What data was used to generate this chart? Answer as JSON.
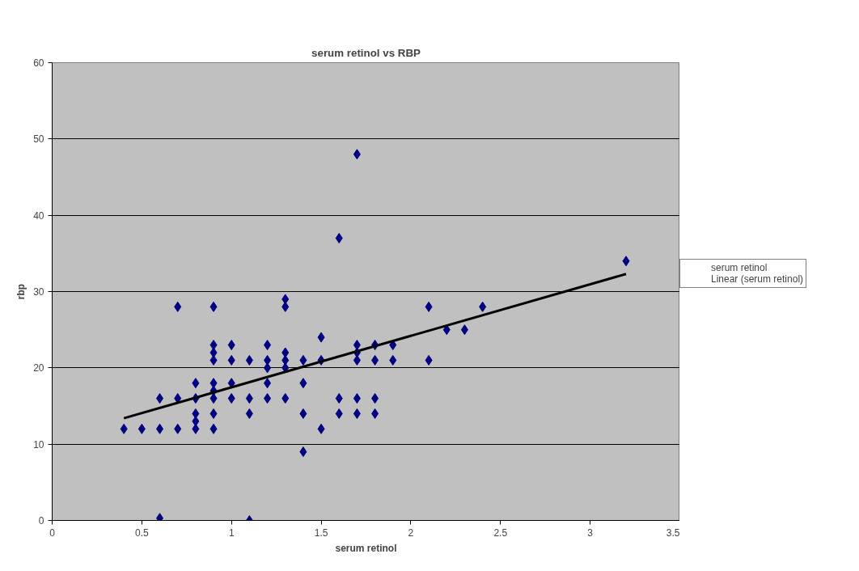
{
  "chart_data": {
    "type": "scatter",
    "title": "serum retinol vs RBP",
    "xlabel": "serum retinol",
    "ylabel": "rbp",
    "xlim": [
      0,
      3.5
    ],
    "xticks": [
      0,
      0.5,
      1,
      1.5,
      2,
      2.5,
      3,
      3.5
    ],
    "ylim": [
      0,
      60
    ],
    "yticks": [
      0,
      10,
      20,
      30,
      40,
      50,
      60
    ],
    "grid": "y",
    "legend": "right",
    "series": [
      {
        "name": "serum retinol",
        "marker": "diamond",
        "color": "#000080",
        "x": [
          0.4,
          0.5,
          0.6,
          0.6,
          0.6,
          0.7,
          0.7,
          0.7,
          0.8,
          0.8,
          0.8,
          0.8,
          0.8,
          0.9,
          0.9,
          0.9,
          0.9,
          0.9,
          0.9,
          0.9,
          0.9,
          0.9,
          1.0,
          1.0,
          1.0,
          1.0,
          1.1,
          1.1,
          1.1,
          1.1,
          1.2,
          1.2,
          1.2,
          1.2,
          1.2,
          1.3,
          1.3,
          1.3,
          1.3,
          1.3,
          1.3,
          1.4,
          1.4,
          1.4,
          1.4,
          1.5,
          1.5,
          1.5,
          1.6,
          1.6,
          1.6,
          1.7,
          1.7,
          1.7,
          1.7,
          1.7,
          1.7,
          1.8,
          1.8,
          1.8,
          1.8,
          1.9,
          1.9,
          2.1,
          2.1,
          2.2,
          2.3,
          2.4,
          3.2
        ],
        "values": [
          12,
          12,
          16,
          12,
          0.3,
          28,
          16,
          12,
          18,
          16,
          14,
          13,
          12,
          28,
          23,
          22,
          21,
          18,
          17,
          16,
          14,
          12,
          23,
          21,
          18,
          16,
          21,
          16,
          14,
          0,
          23,
          21,
          20,
          18,
          16,
          29,
          28,
          22,
          21,
          20,
          16,
          21,
          18,
          14,
          9,
          24,
          21,
          12,
          37,
          16,
          14,
          48,
          23,
          22,
          21,
          16,
          14,
          23,
          21,
          16,
          14,
          23,
          21,
          28,
          21,
          25,
          25,
          28,
          34
        ]
      },
      {
        "name": "Linear (serum retinol)",
        "type": "line",
        "color": "#000000",
        "line_style": "solid",
        "x": [
          0.4,
          3.2
        ],
        "values": [
          13.4,
          32.3
        ]
      }
    ]
  }
}
